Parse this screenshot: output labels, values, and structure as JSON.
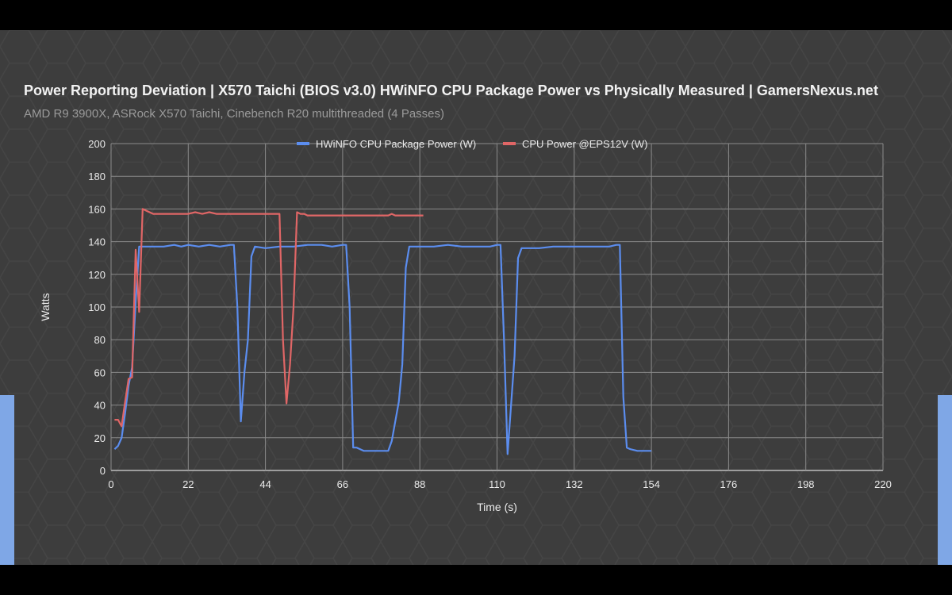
{
  "colors": {
    "background": "#3d3d3d",
    "frame": "#000000",
    "grid": "#8a8a8a",
    "text": "#eaeaea",
    "subtitle": "#9a9a9a",
    "side_accent": "#7fa7e6"
  },
  "chart_data": {
    "type": "line",
    "title": "Power Reporting Deviation | X570 Taichi (BIOS v3.0) HWiNFO CPU Package Power vs Physically Measured | GamersNexus.net",
    "subtitle": "AMD R9 3900X, ASRock X570 Taichi, Cinebench R20 multithreaded (4 Passes)",
    "xlabel": "Time (s)",
    "ylabel": "Watts",
    "xlim": [
      0,
      220
    ],
    "ylim": [
      0,
      200
    ],
    "xticks": [
      0,
      22,
      44,
      66,
      88,
      110,
      132,
      154,
      176,
      198,
      220
    ],
    "yticks": [
      0,
      20,
      40,
      60,
      80,
      100,
      120,
      140,
      160,
      180,
      200
    ],
    "grid": true,
    "legend_position": "top",
    "series": [
      {
        "name": "HWiNFO CPU Package Power (W)",
        "color": "#5b8def",
        "x": [
          1,
          2,
          3,
          4,
          5,
          6,
          7,
          8,
          9,
          12,
          15,
          18,
          20,
          22,
          25,
          28,
          31,
          34,
          35,
          36,
          37,
          38,
          39,
          40,
          41,
          44,
          48,
          52,
          56,
          60,
          63,
          66,
          67,
          68,
          69,
          70,
          72,
          75,
          78,
          79,
          80,
          82,
          83,
          84,
          85,
          88,
          92,
          96,
          100,
          104,
          108,
          110,
          111,
          112,
          113,
          114,
          115,
          116,
          117,
          118,
          122,
          126,
          130,
          134,
          138,
          142,
          144,
          145,
          146,
          147,
          148,
          150,
          154
        ],
        "y": [
          13,
          15,
          20,
          35,
          52,
          63,
          103,
          137,
          137,
          137,
          137,
          138,
          137,
          138,
          137,
          138,
          137,
          138,
          138,
          100,
          30,
          60,
          80,
          131,
          137,
          136,
          137,
          137,
          138,
          138,
          137,
          138,
          138,
          100,
          14,
          14,
          12,
          12,
          12,
          12,
          18,
          42,
          65,
          124,
          137,
          137,
          137,
          138,
          137,
          137,
          137,
          138,
          138,
          80,
          10,
          40,
          70,
          130,
          136,
          136,
          136,
          137,
          137,
          137,
          137,
          137,
          138,
          138,
          45,
          14,
          13,
          12,
          12
        ]
      },
      {
        "name": "CPU Power @EPS12V (W)",
        "color": "#e06666",
        "x": [
          1,
          2,
          3,
          4,
          5,
          6,
          7,
          8,
          9,
          10,
          12,
          15,
          20,
          22,
          24,
          26,
          28,
          30,
          35,
          40,
          45,
          48,
          49,
          50,
          51,
          52,
          53,
          54,
          55,
          56,
          60,
          65,
          70,
          75,
          79,
          80,
          81,
          85,
          89
        ],
        "y": [
          31,
          31,
          27,
          42,
          56,
          57,
          135,
          97,
          160,
          159,
          157,
          157,
          157,
          157,
          158,
          157,
          158,
          157,
          157,
          157,
          157,
          157,
          80,
          41,
          65,
          100,
          158,
          157,
          157,
          156,
          156,
          156,
          156,
          156,
          156,
          157,
          156,
          156,
          156
        ]
      }
    ]
  }
}
